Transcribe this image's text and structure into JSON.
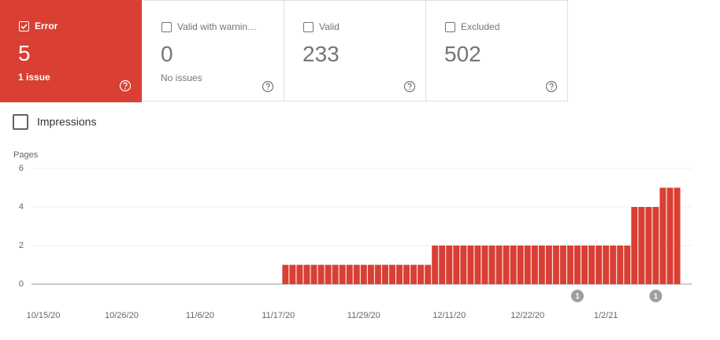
{
  "cards": [
    {
      "label": "Error",
      "value": 5,
      "sub": "1 issue",
      "checked": true,
      "color": "#d93f33"
    },
    {
      "label": "Valid with warnin…",
      "value": 0,
      "sub": "No issues",
      "checked": false,
      "color": "#ffffff"
    },
    {
      "label": "Valid",
      "value": 233,
      "checked": false,
      "color": "#ffffff"
    },
    {
      "label": "Excluded",
      "value": 502,
      "checked": false,
      "color": "#ffffff"
    }
  ],
  "toggle": {
    "label": "Impressions",
    "checked": false
  },
  "chart_data": {
    "type": "bar",
    "y_label": "Pages",
    "color": "#d93f33",
    "grid": true,
    "ylim": [
      0,
      6
    ],
    "yticks": [
      0,
      2,
      4,
      6
    ],
    "categories": [
      "10/15/20",
      null,
      null,
      null,
      null,
      null,
      null,
      null,
      null,
      null,
      null,
      "10/26/20",
      null,
      null,
      null,
      null,
      null,
      null,
      null,
      null,
      null,
      null,
      "11/6/20",
      null,
      null,
      null,
      null,
      null,
      null,
      null,
      null,
      null,
      null,
      "11/17/20",
      null,
      null,
      null,
      null,
      null,
      null,
      null,
      null,
      null,
      null,
      null,
      "11/29/20",
      null,
      null,
      null,
      null,
      null,
      null,
      null,
      null,
      null,
      null,
      null,
      "12/11/20",
      null,
      null,
      null,
      null,
      null,
      null,
      null,
      null,
      null,
      null,
      "12/22/20",
      null,
      null,
      null,
      null,
      null,
      null,
      null,
      null,
      null,
      null,
      "1/2/21",
      null,
      null,
      null,
      null,
      null,
      null,
      null,
      null,
      null,
      null
    ],
    "values": [
      0,
      0,
      0,
      0,
      0,
      0,
      0,
      0,
      0,
      0,
      0,
      0,
      0,
      0,
      0,
      0,
      0,
      0,
      0,
      0,
      0,
      0,
      0,
      0,
      0,
      0,
      0,
      0,
      0,
      0,
      0,
      0,
      0,
      0,
      1,
      1,
      1,
      1,
      1,
      1,
      1,
      1,
      1,
      1,
      1,
      1,
      1,
      1,
      1,
      1,
      1,
      1,
      1,
      1,
      1,
      2,
      2,
      2,
      2,
      2,
      2,
      2,
      2,
      2,
      2,
      2,
      2,
      2,
      2,
      2,
      2,
      2,
      2,
      2,
      2,
      2,
      2,
      2,
      2,
      2,
      2,
      2,
      2,
      4,
      4,
      4,
      4,
      5,
      5,
      5
    ],
    "annotations": [
      null,
      null,
      null,
      null,
      null,
      null,
      null,
      null,
      null,
      null,
      null,
      null,
      null,
      null,
      null,
      null,
      null,
      null,
      null,
      null,
      null,
      null,
      null,
      null,
      null,
      null,
      null,
      null,
      null,
      null,
      null,
      null,
      null,
      null,
      null,
      null,
      null,
      null,
      null,
      null,
      null,
      null,
      null,
      null,
      null,
      null,
      null,
      null,
      null,
      null,
      null,
      null,
      null,
      null,
      null,
      null,
      null,
      null,
      null,
      null,
      null,
      null,
      null,
      null,
      null,
      null,
      null,
      null,
      null,
      null,
      null,
      null,
      null,
      null,
      null,
      "1",
      null,
      null,
      null,
      null,
      null,
      null,
      null,
      null,
      null,
      null,
      "1",
      null,
      null,
      null
    ]
  }
}
